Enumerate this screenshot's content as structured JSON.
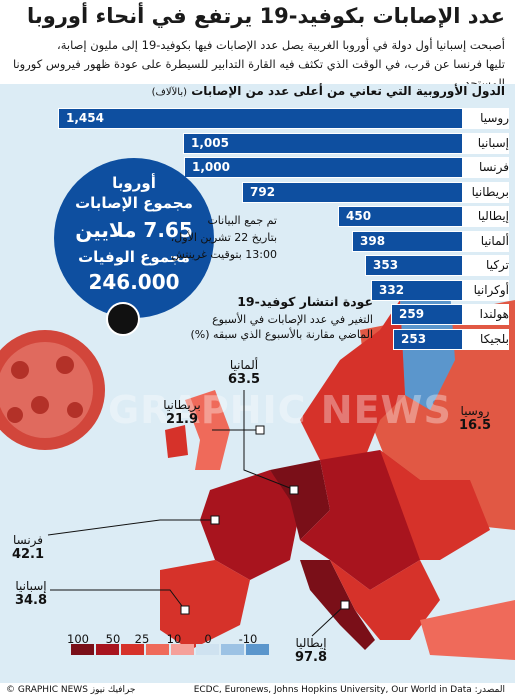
{
  "title": "عدد الإصابات بكوفيد-19 يرتفع في أنحاء أوروبا",
  "subtitle_line1": "أصبحت إسبانيا أول دولة في أوروبا الغربية يصل عدد الإصابات فيها بكوفيد-19 إلى مليون إصابة،",
  "subtitle_line2": "تليها فرنسا عن قرب، في الوقت الذي تكثف فيه القارة التدابير للسيطرة على عودة ظهور فيروس كورونا المستجد",
  "watermark": "GRAPHIC NEWS",
  "bar_chart": {
    "heading": "الدول الأوروبية التي تعاني من أعلى عدد من الإصابات",
    "unit": "(بالآلاف)",
    "value_labels": [
      "1,454",
      "1,005",
      "1,000",
      "792",
      "450",
      "398",
      "353",
      "332",
      "259",
      "253"
    ]
  },
  "europe_circle": {
    "line1": "أوروبا",
    "line2": "مجموع الإصابات",
    "line3": "7.65 ملايين",
    "line4": "مجموع الوفيات",
    "line5": "246.000"
  },
  "data_note": {
    "line1": "تم جمع البيانات",
    "line2": "بتاريخ 22 تشرين الأول،",
    "line3": "13:00 بتوقيت غرينتش"
  },
  "spread": {
    "title": "عودة انتشار كوفيد-19",
    "subtitle": "التغير في عدد الإصابات في الأسبوع الماضي مقارنة بالأسبوع الذي سبقه (%)"
  },
  "map_callouts": [
    {
      "name": "ألمانيا",
      "value": "63.5"
    },
    {
      "name": "بريطانيا",
      "value": "21.9"
    },
    {
      "name": "روسيا",
      "value": "16.5"
    },
    {
      "name": "فرنسا",
      "value": "42.1"
    },
    {
      "name": "إسبانيا",
      "value": "34.8"
    },
    {
      "name": "إيطاليا",
      "value": "97.8"
    }
  ],
  "legend": {
    "labels": [
      "100",
      "50",
      "25",
      "10",
      "0",
      "-10"
    ],
    "colors": [
      "#7a0f18",
      "#a8141e",
      "#d6322a",
      "#ef6a5a",
      "#f5a09a",
      "#cfe2f0",
      "#9cc2e4",
      "#5b96cc"
    ]
  },
  "source": "المصدر: ECDC, Euronews, Johns Hopkins University, Our World in Data",
  "credit": "© GRAPHIC NEWS جرافيك نيوز",
  "chart_data": {
    "type": "bar",
    "orientation": "horizontal",
    "title": "الدول الأوروبية التي تعاني من أعلى عدد من الإصابات",
    "ylabel": "(بالآلاف)",
    "categories": [
      "روسيا",
      "إسبانيا",
      "فرنسا",
      "بريطانيا",
      "إيطاليا",
      "ألمانيا",
      "تركيا",
      "أوكرانيا",
      "هولندا",
      "بلجيكا"
    ],
    "values": [
      1454,
      1005,
      1000,
      792,
      450,
      398,
      353,
      332,
      259,
      253
    ],
    "xlim": [
      0,
      1454
    ]
  },
  "colors": {
    "bar": "#0e4fa0",
    "sea": "#dcecf5",
    "land_non_eu": "#b9c5cc"
  }
}
